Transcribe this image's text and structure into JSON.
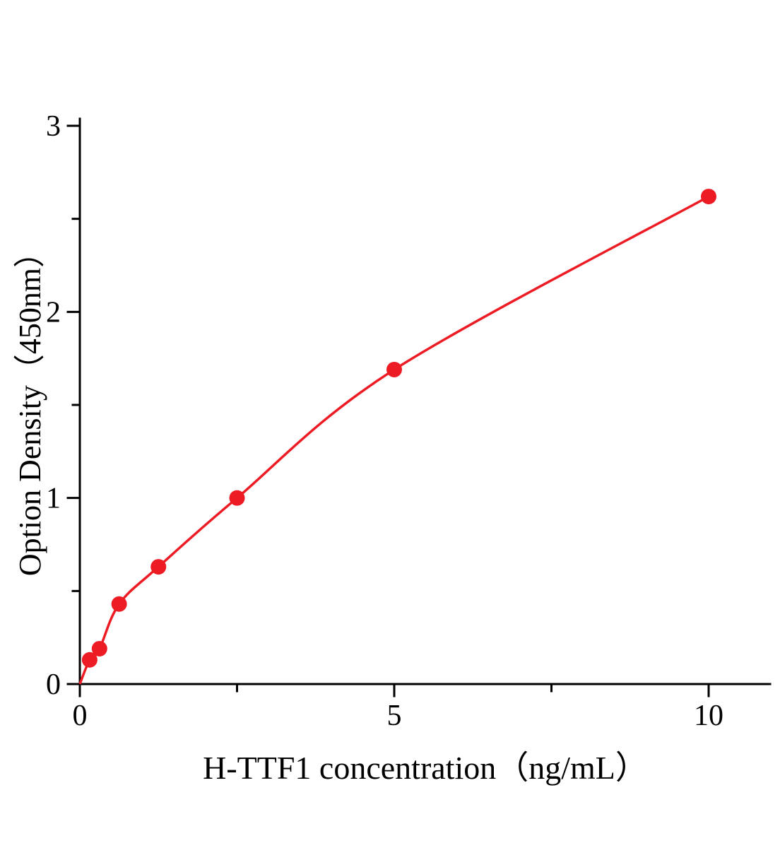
{
  "figure": {
    "background": "#ffffff",
    "axis_color": "#000000"
  },
  "chart_data": {
    "type": "scatter",
    "title": "",
    "xlabel": "H-TTF1 concentration（ng/mL）",
    "ylabel": "Option Density（450nm）",
    "x": [
      0.156,
      0.3125,
      0.625,
      1.25,
      2.5,
      5,
      10
    ],
    "y": [
      0.13,
      0.19,
      0.43,
      0.63,
      1.0,
      1.69,
      2.62
    ],
    "curve_start": [
      0,
      0
    ],
    "xlim": [
      0,
      11
    ],
    "ylim": [
      0,
      3
    ],
    "x_major_ticks": [
      0,
      5,
      10
    ],
    "x_minor_ticks": [
      2.5,
      7.5
    ],
    "y_major_ticks": [
      0,
      1,
      2,
      3
    ],
    "y_minor_ticks": [
      0.5,
      1.5,
      2.5
    ],
    "grid": "off",
    "legend": "none",
    "line_color": "#ed1c24",
    "marker_color": "#ed1c24",
    "marker_shape": "circle"
  }
}
